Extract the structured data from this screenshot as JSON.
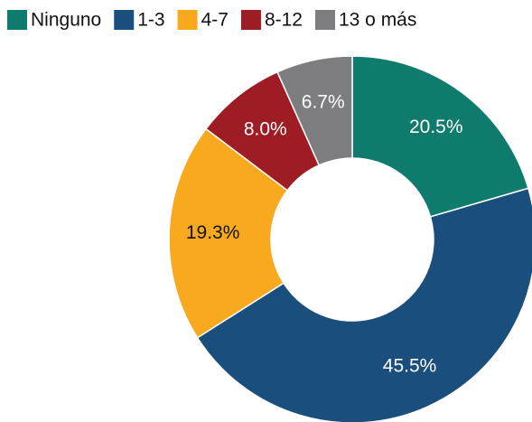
{
  "chart_data": {
    "type": "donut",
    "categories": [
      "Ninguno",
      "1-3",
      "4-7",
      "8-12",
      "13 o más"
    ],
    "values": [
      20.5,
      45.5,
      19.3,
      8.0,
      6.7
    ],
    "value_labels": [
      "20.5%",
      "45.5%",
      "19.3%",
      "8.0%",
      "6.7%"
    ],
    "colors": [
      "#0f7b6c",
      "#1a4e7c",
      "#f9a91e",
      "#9e1c23",
      "#7d7d7f"
    ],
    "legend": "top"
  }
}
